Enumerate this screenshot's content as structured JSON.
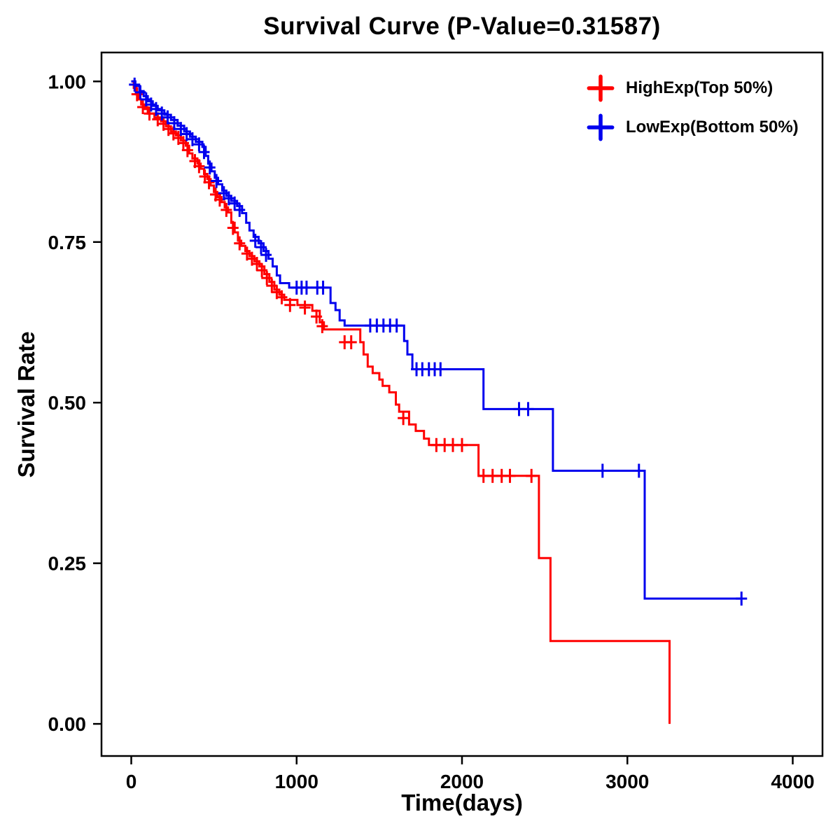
{
  "chart_data": {
    "type": "line",
    "variant": "kaplan_meier_step_survival",
    "title": "Survival Curve (P-Value=0.31587)",
    "xlabel": "Time(days)",
    "ylabel": "Survival Rate",
    "xlim": [
      -180,
      4180
    ],
    "ylim": [
      -0.05,
      1.045
    ],
    "xticks": [
      0,
      1000,
      2000,
      3000,
      4000
    ],
    "xtick_labels": [
      "0",
      "1000",
      "2000",
      "3000",
      "4000"
    ],
    "yticks": [
      0,
      0.25,
      0.5,
      0.75,
      1
    ],
    "ytick_labels": [
      "0.00",
      "0.25",
      "0.50",
      "0.75",
      "1.00"
    ],
    "grid": false,
    "p_value": "0.31587",
    "legend": {
      "position": "top-right",
      "entries": [
        {
          "key": "highexp",
          "label": "HighExp(Top 50%)",
          "color": "#FF0000"
        },
        {
          "key": "lowexp",
          "label": "LowExp(Bottom 50%)",
          "color": "#0000EE"
        }
      ]
    },
    "series": [
      {
        "key": "highexp",
        "name": "HighExp(Top 50%)",
        "color": "#FF0000",
        "steps": [
          [
            0,
            1.0
          ],
          [
            15,
            0.99
          ],
          [
            30,
            0.98
          ],
          [
            45,
            0.972
          ],
          [
            60,
            0.964
          ],
          [
            80,
            0.957
          ],
          [
            100,
            0.95
          ],
          [
            140,
            0.944
          ],
          [
            180,
            0.938
          ],
          [
            210,
            0.93
          ],
          [
            240,
            0.922
          ],
          [
            270,
            0.916
          ],
          [
            300,
            0.908
          ],
          [
            330,
            0.9
          ],
          [
            350,
            0.888
          ],
          [
            370,
            0.88
          ],
          [
            400,
            0.872
          ],
          [
            420,
            0.864
          ],
          [
            440,
            0.856
          ],
          [
            460,
            0.848
          ],
          [
            480,
            0.838
          ],
          [
            500,
            0.828
          ],
          [
            520,
            0.82
          ],
          [
            545,
            0.812
          ],
          [
            565,
            0.804
          ],
          [
            585,
            0.796
          ],
          [
            605,
            0.78
          ],
          [
            625,
            0.765
          ],
          [
            645,
            0.752
          ],
          [
            665,
            0.744
          ],
          [
            690,
            0.736
          ],
          [
            715,
            0.728
          ],
          [
            745,
            0.72
          ],
          [
            775,
            0.712
          ],
          [
            805,
            0.7
          ],
          [
            835,
            0.688
          ],
          [
            865,
            0.676
          ],
          [
            895,
            0.668
          ],
          [
            925,
            0.66
          ],
          [
            1005,
            0.652
          ],
          [
            1095,
            0.643
          ],
          [
            1140,
            0.625
          ],
          [
            1165,
            0.614
          ],
          [
            1385,
            0.594
          ],
          [
            1405,
            0.575
          ],
          [
            1430,
            0.556
          ],
          [
            1460,
            0.546
          ],
          [
            1500,
            0.536
          ],
          [
            1520,
            0.526
          ],
          [
            1560,
            0.516
          ],
          [
            1600,
            0.497
          ],
          [
            1620,
            0.486
          ],
          [
            1680,
            0.466
          ],
          [
            1720,
            0.456
          ],
          [
            1770,
            0.444
          ],
          [
            1800,
            0.434
          ],
          [
            2100,
            0.386
          ],
          [
            2465,
            0.258
          ],
          [
            2535,
            0.129
          ],
          [
            3255,
            0.0
          ]
        ],
        "censors": [
          [
            35,
            0.98
          ],
          [
            70,
            0.96
          ],
          [
            110,
            0.95
          ],
          [
            160,
            0.941
          ],
          [
            195,
            0.934
          ],
          [
            225,
            0.926
          ],
          [
            255,
            0.919
          ],
          [
            285,
            0.912
          ],
          [
            315,
            0.904
          ],
          [
            340,
            0.893
          ],
          [
            385,
            0.876
          ],
          [
            410,
            0.868
          ],
          [
            445,
            0.852
          ],
          [
            470,
            0.843
          ],
          [
            510,
            0.824
          ],
          [
            535,
            0.816
          ],
          [
            575,
            0.8
          ],
          [
            615,
            0.772
          ],
          [
            655,
            0.748
          ],
          [
            700,
            0.732
          ],
          [
            730,
            0.724
          ],
          [
            760,
            0.716
          ],
          [
            790,
            0.706
          ],
          [
            820,
            0.694
          ],
          [
            850,
            0.682
          ],
          [
            880,
            0.672
          ],
          [
            910,
            0.664
          ],
          [
            960,
            0.652
          ],
          [
            1050,
            0.648
          ],
          [
            1120,
            0.634
          ],
          [
            1155,
            0.619
          ],
          [
            1290,
            0.594
          ],
          [
            1330,
            0.594
          ],
          [
            1645,
            0.476
          ],
          [
            1845,
            0.434
          ],
          [
            1895,
            0.434
          ],
          [
            1945,
            0.434
          ],
          [
            2000,
            0.434
          ],
          [
            2130,
            0.386
          ],
          [
            2185,
            0.386
          ],
          [
            2240,
            0.386
          ],
          [
            2290,
            0.386
          ],
          [
            2420,
            0.386
          ]
        ]
      },
      {
        "key": "lowexp",
        "name": "LowExp(Bottom 50%)",
        "color": "#0000EE",
        "steps": [
          [
            0,
            1.0
          ],
          [
            25,
            0.993
          ],
          [
            50,
            0.985
          ],
          [
            75,
            0.977
          ],
          [
            100,
            0.969
          ],
          [
            130,
            0.962
          ],
          [
            160,
            0.955
          ],
          [
            200,
            0.948
          ],
          [
            240,
            0.94
          ],
          [
            280,
            0.931
          ],
          [
            320,
            0.922
          ],
          [
            355,
            0.914
          ],
          [
            390,
            0.906
          ],
          [
            430,
            0.898
          ],
          [
            450,
            0.884
          ],
          [
            465,
            0.872
          ],
          [
            485,
            0.86
          ],
          [
            505,
            0.85
          ],
          [
            525,
            0.84
          ],
          [
            550,
            0.83
          ],
          [
            575,
            0.822
          ],
          [
            605,
            0.814
          ],
          [
            640,
            0.806
          ],
          [
            670,
            0.795
          ],
          [
            695,
            0.78
          ],
          [
            715,
            0.768
          ],
          [
            740,
            0.758
          ],
          [
            770,
            0.748
          ],
          [
            800,
            0.736
          ],
          [
            830,
            0.724
          ],
          [
            855,
            0.712
          ],
          [
            880,
            0.698
          ],
          [
            900,
            0.686
          ],
          [
            955,
            0.679
          ],
          [
            1205,
            0.655
          ],
          [
            1235,
            0.644
          ],
          [
            1260,
            0.628
          ],
          [
            1290,
            0.62
          ],
          [
            1650,
            0.596
          ],
          [
            1670,
            0.575
          ],
          [
            1700,
            0.552
          ],
          [
            2130,
            0.49
          ],
          [
            2550,
            0.394
          ],
          [
            3105,
            0.195
          ],
          [
            3690,
            0.195
          ]
        ],
        "censors": [
          [
            20,
            0.995
          ],
          [
            55,
            0.983
          ],
          [
            90,
            0.972
          ],
          [
            120,
            0.964
          ],
          [
            150,
            0.957
          ],
          [
            185,
            0.95
          ],
          [
            220,
            0.944
          ],
          [
            260,
            0.935
          ],
          [
            300,
            0.926
          ],
          [
            335,
            0.918
          ],
          [
            370,
            0.91
          ],
          [
            410,
            0.902
          ],
          [
            440,
            0.89
          ],
          [
            475,
            0.866
          ],
          [
            515,
            0.845
          ],
          [
            560,
            0.826
          ],
          [
            590,
            0.818
          ],
          [
            625,
            0.81
          ],
          [
            655,
            0.8
          ],
          [
            750,
            0.752
          ],
          [
            785,
            0.742
          ],
          [
            815,
            0.73
          ],
          [
            1000,
            0.679
          ],
          [
            1030,
            0.679
          ],
          [
            1060,
            0.679
          ],
          [
            1125,
            0.679
          ],
          [
            1160,
            0.679
          ],
          [
            1445,
            0.62
          ],
          [
            1485,
            0.62
          ],
          [
            1525,
            0.62
          ],
          [
            1565,
            0.62
          ],
          [
            1605,
            0.62
          ],
          [
            1725,
            0.552
          ],
          [
            1760,
            0.552
          ],
          [
            1800,
            0.552
          ],
          [
            1835,
            0.552
          ],
          [
            1870,
            0.552
          ],
          [
            2345,
            0.49
          ],
          [
            2400,
            0.49
          ],
          [
            2850,
            0.394
          ],
          [
            3070,
            0.394
          ],
          [
            3690,
            0.195
          ]
        ]
      }
    ]
  }
}
